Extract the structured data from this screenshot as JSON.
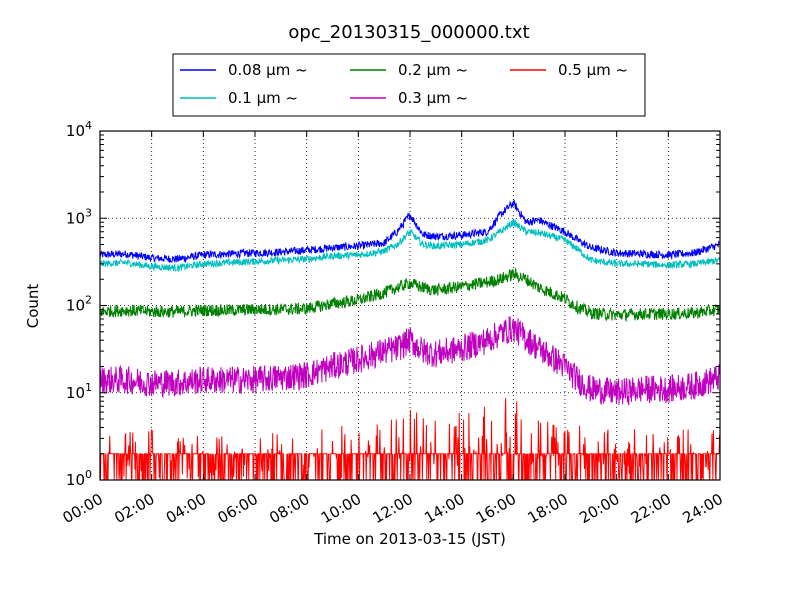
{
  "chart_data": {
    "type": "line",
    "title": "opc_20130315_000000.txt",
    "xlabel": "Time on 2013-03-15 (JST)",
    "ylabel": "Count",
    "y_scale": "log",
    "ylim": [
      1,
      10000
    ],
    "x_range": [
      "00:00",
      "24:00"
    ],
    "grid": true,
    "legend_position": "top",
    "x_tick_labels": [
      "00:00",
      "02:00",
      "04:00",
      "06:00",
      "08:00",
      "10:00",
      "12:00",
      "14:00",
      "16:00",
      "18:00",
      "20:00",
      "22:00",
      "24:00"
    ],
    "y_tick_labels": [
      {
        "base": "10",
        "exp": "0"
      },
      {
        "base": "10",
        "exp": "1"
      },
      {
        "base": "10",
        "exp": "2"
      },
      {
        "base": "10",
        "exp": "3"
      },
      {
        "base": "10",
        "exp": "4"
      }
    ],
    "x": [
      "00:00",
      "01:00",
      "02:00",
      "03:00",
      "04:00",
      "05:00",
      "06:00",
      "07:00",
      "08:00",
      "09:00",
      "10:00",
      "11:00",
      "11:30",
      "12:00",
      "12:30",
      "13:00",
      "14:00",
      "15:00",
      "15:30",
      "16:00",
      "16:30",
      "17:00",
      "18:00",
      "18:30",
      "19:00",
      "20:00",
      "21:00",
      "22:00",
      "23:00",
      "24:00"
    ],
    "series": [
      {
        "name": "0.08 μm ~",
        "color": "#0000ff",
        "values": [
          380,
          390,
          350,
          340,
          380,
          390,
          400,
          410,
          430,
          460,
          480,
          520,
          700,
          1100,
          650,
          620,
          640,
          700,
          1100,
          1500,
          900,
          950,
          700,
          560,
          460,
          400,
          390,
          380,
          400,
          500
        ]
      },
      {
        "name": "0.1 μm ~",
        "color": "#00bfbf",
        "values": [
          300,
          310,
          280,
          270,
          300,
          310,
          320,
          330,
          340,
          370,
          380,
          420,
          500,
          700,
          500,
          480,
          500,
          560,
          700,
          900,
          700,
          680,
          560,
          440,
          330,
          300,
          300,
          290,
          300,
          330
        ]
      },
      {
        "name": "0.2 μm ~",
        "color": "#008000",
        "values": [
          85,
          88,
          85,
          85,
          88,
          88,
          90,
          90,
          92,
          105,
          115,
          140,
          160,
          180,
          160,
          150,
          165,
          185,
          200,
          230,
          200,
          160,
          120,
          95,
          82,
          78,
          80,
          80,
          82,
          90
        ]
      },
      {
        "name": "0.3 μm ~",
        "color": "#bf00bf",
        "values": [
          14,
          14,
          13,
          13,
          14,
          14,
          14,
          15,
          16,
          20,
          24,
          30,
          32,
          40,
          30,
          28,
          32,
          40,
          48,
          55,
          42,
          32,
          20,
          14,
          11,
          10,
          11,
          11,
          12,
          15
        ]
      },
      {
        "name": "0.5 μm ~",
        "color": "#ff0000",
        "values": [
          1.3,
          1.3,
          1.3,
          1.3,
          1.3,
          1.3,
          1.3,
          1.3,
          1.3,
          1.4,
          1.6,
          2.0,
          2.2,
          2.4,
          2.2,
          2.0,
          2.2,
          2.6,
          2.8,
          3.0,
          2.5,
          2.0,
          1.5,
          1.4,
          1.3,
          1.3,
          1.3,
          1.3,
          1.3,
          1.4
        ]
      }
    ]
  }
}
